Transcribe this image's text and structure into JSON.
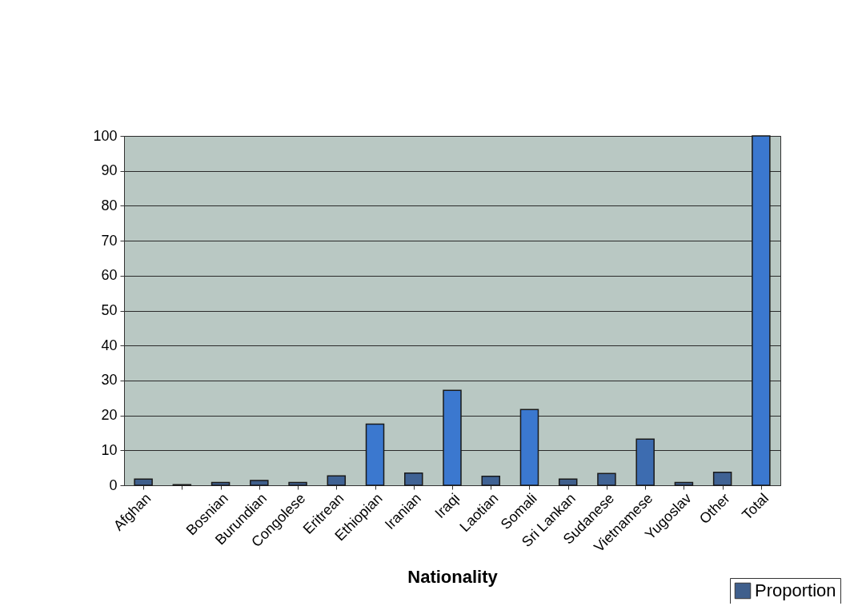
{
  "chart_data": {
    "type": "bar",
    "xlabel": "Nationality",
    "categories": [
      "Afghan",
      null,
      "Bosnian",
      "Burundian",
      "Congolese",
      "Eritrean",
      "Ethiopian",
      "Iranian",
      "Iraqi",
      "Laotian",
      "Somali",
      "Sri Lankan",
      "Sudanese",
      "Vietnamese",
      "Yugoslav",
      "Other",
      "Total"
    ],
    "series": [
      {
        "name": "Proportion",
        "color": "#3f5f8c",
        "values": [
          1.8,
          0.2,
          0.8,
          1.4,
          0.8,
          2.7,
          17.5,
          3.5,
          27.2,
          2.6,
          21.7,
          1.8,
          3.4,
          13.2,
          0.8,
          3.7,
          100
        ],
        "colors": [
          "#3f5f8c",
          "#3f5f8c",
          "#3f5f8c",
          "#3f5f8c",
          "#3f5f8c",
          "#3f6294",
          "#3b78cf",
          "#3f6294",
          "#3b78cf",
          "#3f6294",
          "#3b78cf",
          "#3f5f8c",
          "#3f6294",
          "#3d6cb0",
          "#3f5f8c",
          "#3f6294",
          "#3b78cf"
        ]
      }
    ],
    "ylim": [
      0,
      100
    ],
    "yticks": [
      0,
      10,
      20,
      30,
      40,
      50,
      60,
      70,
      80,
      90,
      100
    ],
    "grid": "y",
    "legend": "bottom right"
  }
}
